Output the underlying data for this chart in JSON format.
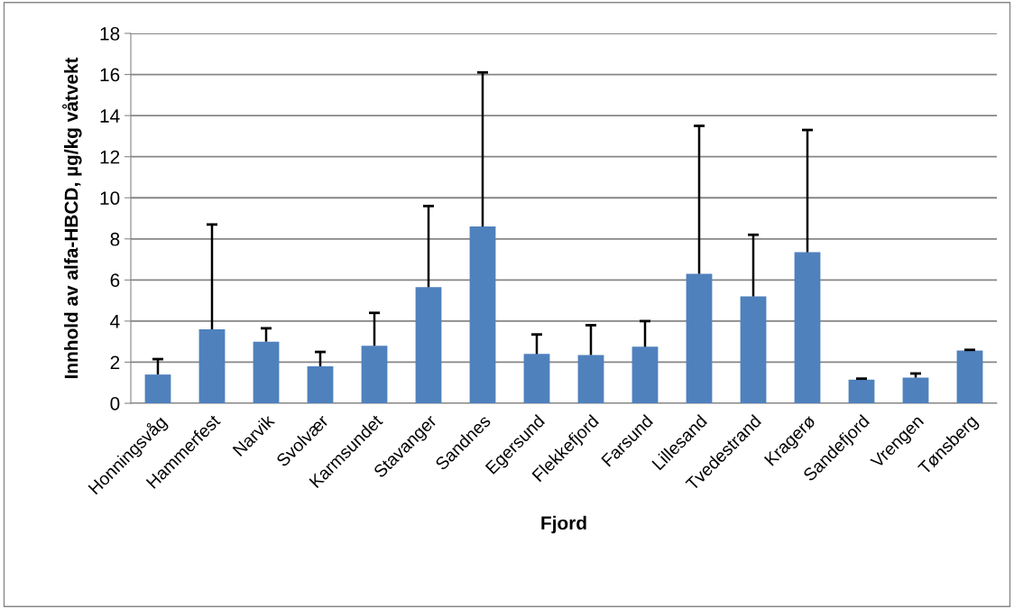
{
  "chart_data": {
    "type": "bar",
    "xlabel": "Fjord",
    "ylabel": "Innhold av alfa-HBCD, µg/kg våtvekt",
    "categories": [
      "Honningsvåg",
      "Hammerfest",
      "Narvik",
      "Svolvær",
      "Karmsundet",
      "Stavanger",
      "Sandnes",
      "Egersund",
      "Flekkefjord",
      "Farsund",
      "Lillesand",
      "Tvedestrand",
      "Kragerø",
      "Sandefjord",
      "Vrengen",
      "Tønsberg"
    ],
    "values": [
      1.4,
      3.6,
      3.0,
      1.8,
      2.8,
      5.65,
      8.6,
      2.4,
      2.35,
      2.75,
      6.3,
      5.2,
      7.35,
      1.15,
      1.25,
      2.57
    ],
    "errors": [
      [
        1.4,
        2.15
      ],
      [
        3.6,
        8.7
      ],
      [
        3.0,
        3.65
      ],
      [
        1.8,
        2.5
      ],
      [
        2.8,
        4.4
      ],
      [
        5.65,
        9.6
      ],
      [
        8.6,
        16.1
      ],
      [
        2.4,
        3.35
      ],
      [
        2.35,
        3.8
      ],
      [
        2.75,
        4.0
      ],
      [
        6.3,
        13.5
      ],
      [
        5.2,
        8.2
      ],
      [
        7.35,
        13.3
      ],
      [
        1.15,
        1.2
      ],
      [
        1.25,
        1.45
      ],
      [
        2.57,
        2.6
      ]
    ],
    "color": "#4f81bd",
    "ylim": [
      0,
      18
    ],
    "yticks": [
      0,
      2,
      4,
      6,
      8,
      10,
      12,
      14,
      16,
      18
    ],
    "grid": "y"
  }
}
